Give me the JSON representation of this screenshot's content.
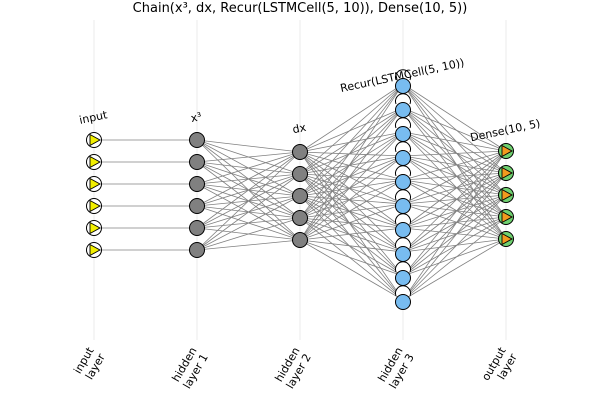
{
  "title": "Chain(x³, dx, Recur(LSTMCell(5, 10)), Dense(10, 5))",
  "layers": [
    {
      "name": "input",
      "node_label": "input",
      "axis_label": [
        "input",
        "layer"
      ],
      "nodes": 6,
      "node_type": "input",
      "color": "#f2ef00"
    },
    {
      "name": "hidden-1",
      "node_label": "x³",
      "axis_label": [
        "hidden",
        "layer 1"
      ],
      "nodes": 6,
      "node_type": "plain",
      "color": "#808080"
    },
    {
      "name": "hidden-2",
      "node_label": "dx",
      "axis_label": [
        "hidden",
        "layer 2"
      ],
      "nodes": 5,
      "node_type": "plain",
      "color": "#808080"
    },
    {
      "name": "hidden-3",
      "node_label": "Recur(LSTMCell(5, 10))",
      "axis_label": [
        "hidden",
        "layer 3"
      ],
      "nodes": 10,
      "node_type": "recurrent",
      "color": "#78bcf0"
    },
    {
      "name": "output",
      "node_label": "Dense(10, 5)",
      "axis_label": [
        "output",
        "layer"
      ],
      "nodes": 5,
      "node_type": "output",
      "color": "#6fd06f",
      "arrow_color": "#f29a1e"
    }
  ],
  "connections": [
    {
      "from": 0,
      "to": 1,
      "type": "one-to-one"
    },
    {
      "from": 1,
      "to": 2,
      "type": "full"
    },
    {
      "from": 2,
      "to": 3,
      "type": "full"
    },
    {
      "from": 3,
      "to": 4,
      "type": "full"
    }
  ]
}
